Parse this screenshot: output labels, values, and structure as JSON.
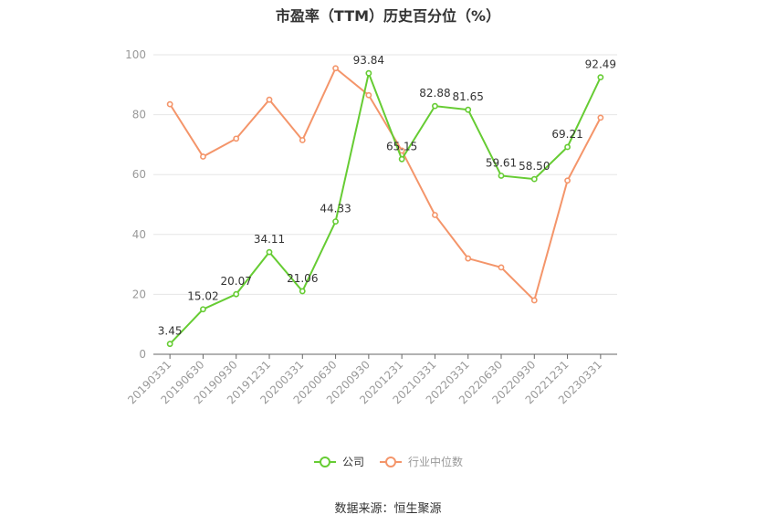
{
  "chart_data": {
    "type": "line",
    "title": "市盈率（TTM）历史百分位（%）",
    "categories": [
      "20190331",
      "20190630",
      "20190930",
      "20191231",
      "20200331",
      "20200630",
      "20200930",
      "20201231",
      "20210331",
      "20220331",
      "20220630",
      "20220930",
      "20221231",
      "20230331"
    ],
    "series": [
      {
        "name": "公司",
        "color": "#66cc33",
        "values": [
          3.45,
          15.02,
          20.07,
          34.11,
          21.06,
          44.33,
          93.84,
          65.15,
          82.88,
          81.65,
          59.61,
          58.5,
          69.21,
          92.49
        ],
        "data_labels": [
          "3.45",
          "15.02",
          "20.07",
          "34.11",
          "21.06",
          "44.33",
          "93.84",
          "65.15",
          "82.88",
          "81.65",
          "59.61",
          "58.50",
          "69.21",
          "92.49"
        ]
      },
      {
        "name": "行业中位数",
        "color": "#f4956a",
        "values": [
          83.5,
          66,
          72,
          85,
          71.5,
          95.5,
          86.5,
          68,
          46.5,
          32,
          29,
          18,
          58,
          79
        ]
      }
    ],
    "ylim": [
      0,
      100
    ],
    "yticks": [
      0,
      20,
      40,
      60,
      80,
      100
    ],
    "grid": true,
    "legend_position": "bottom-center"
  },
  "source_text": "数据来源：恒生聚源"
}
